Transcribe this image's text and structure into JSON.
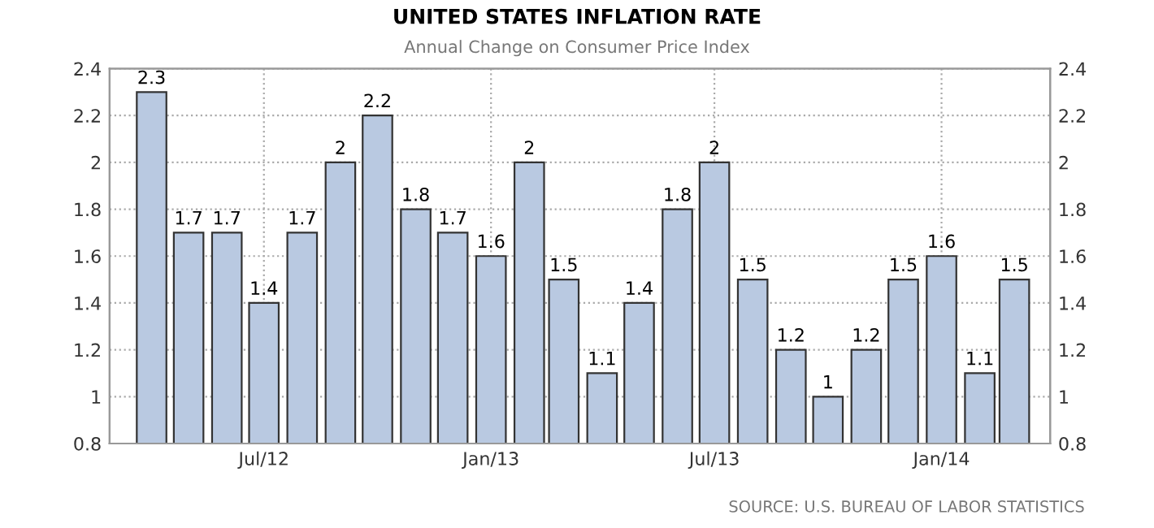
{
  "chart_data": {
    "type": "bar",
    "title": "UNITED STATES INFLATION RATE",
    "subtitle": "Annual Change on Consumer Price Index",
    "x": [
      "2012-04",
      "2012-05",
      "2012-06",
      "2012-07",
      "2012-08",
      "2012-09",
      "2012-10",
      "2012-11",
      "2012-12",
      "2013-01",
      "2013-02",
      "2013-03",
      "2013-04",
      "2013-05",
      "2013-06",
      "2013-07",
      "2013-08",
      "2013-09",
      "2013-10",
      "2013-11",
      "2013-12",
      "2014-01",
      "2014-02",
      "2014-03"
    ],
    "values": [
      2.3,
      1.7,
      1.7,
      1.4,
      1.7,
      2,
      2.2,
      1.8,
      1.7,
      1.6,
      2,
      1.5,
      1.1,
      1.4,
      1.8,
      2,
      1.5,
      1.2,
      1,
      1.2,
      1.5,
      1.6,
      1.1,
      1.5
    ],
    "color": "#b9c9e1",
    "data_labels": true,
    "xlim": [
      "2012-02-27",
      "2014-03-30"
    ],
    "xticks": [
      {
        "value": "2012-07",
        "label": "Jul/12"
      },
      {
        "value": "2013-01",
        "label": "Jan/13"
      },
      {
        "value": "2013-07",
        "label": "Jul/13"
      },
      {
        "value": "2014-01",
        "label": "Jan/14"
      }
    ],
    "ylim": [
      0.8,
      2.4
    ],
    "yticks": [
      0.8,
      1,
      1.2,
      1.4,
      1.6,
      1.8,
      2,
      2.2,
      2.4
    ],
    "y2lim": [
      0.8,
      2.4
    ],
    "y2ticks": [
      0.8,
      1,
      1.2,
      1.4,
      1.6,
      1.8,
      2,
      2.2,
      2.4
    ],
    "grid": true,
    "annotations": [
      "SOURCE: U.S. BUREAU OF LABOR STATISTICS"
    ]
  }
}
